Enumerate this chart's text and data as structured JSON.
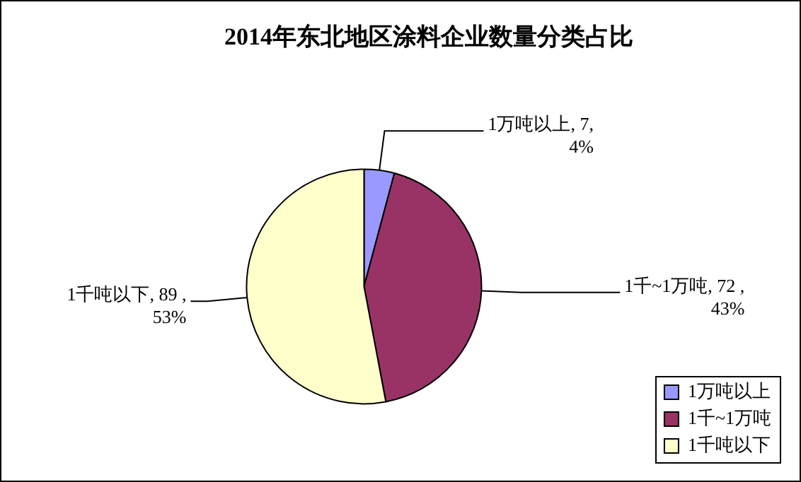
{
  "chart_data": {
    "type": "pie",
    "title": "2014年东北地区涂料企业数量分类占比",
    "categories": [
      "1万吨以上",
      "1千~1万吨",
      "1千吨以下"
    ],
    "values": [
      7,
      72,
      89
    ],
    "colors": [
      "#9999ff",
      "#993366",
      "#ffffcc"
    ],
    "value_labels": [
      "1万吨以上, 7, 4%",
      "1千~1万吨, 72 , 43%",
      "1千吨以下, 89 , 53%"
    ],
    "legend": "right"
  }
}
